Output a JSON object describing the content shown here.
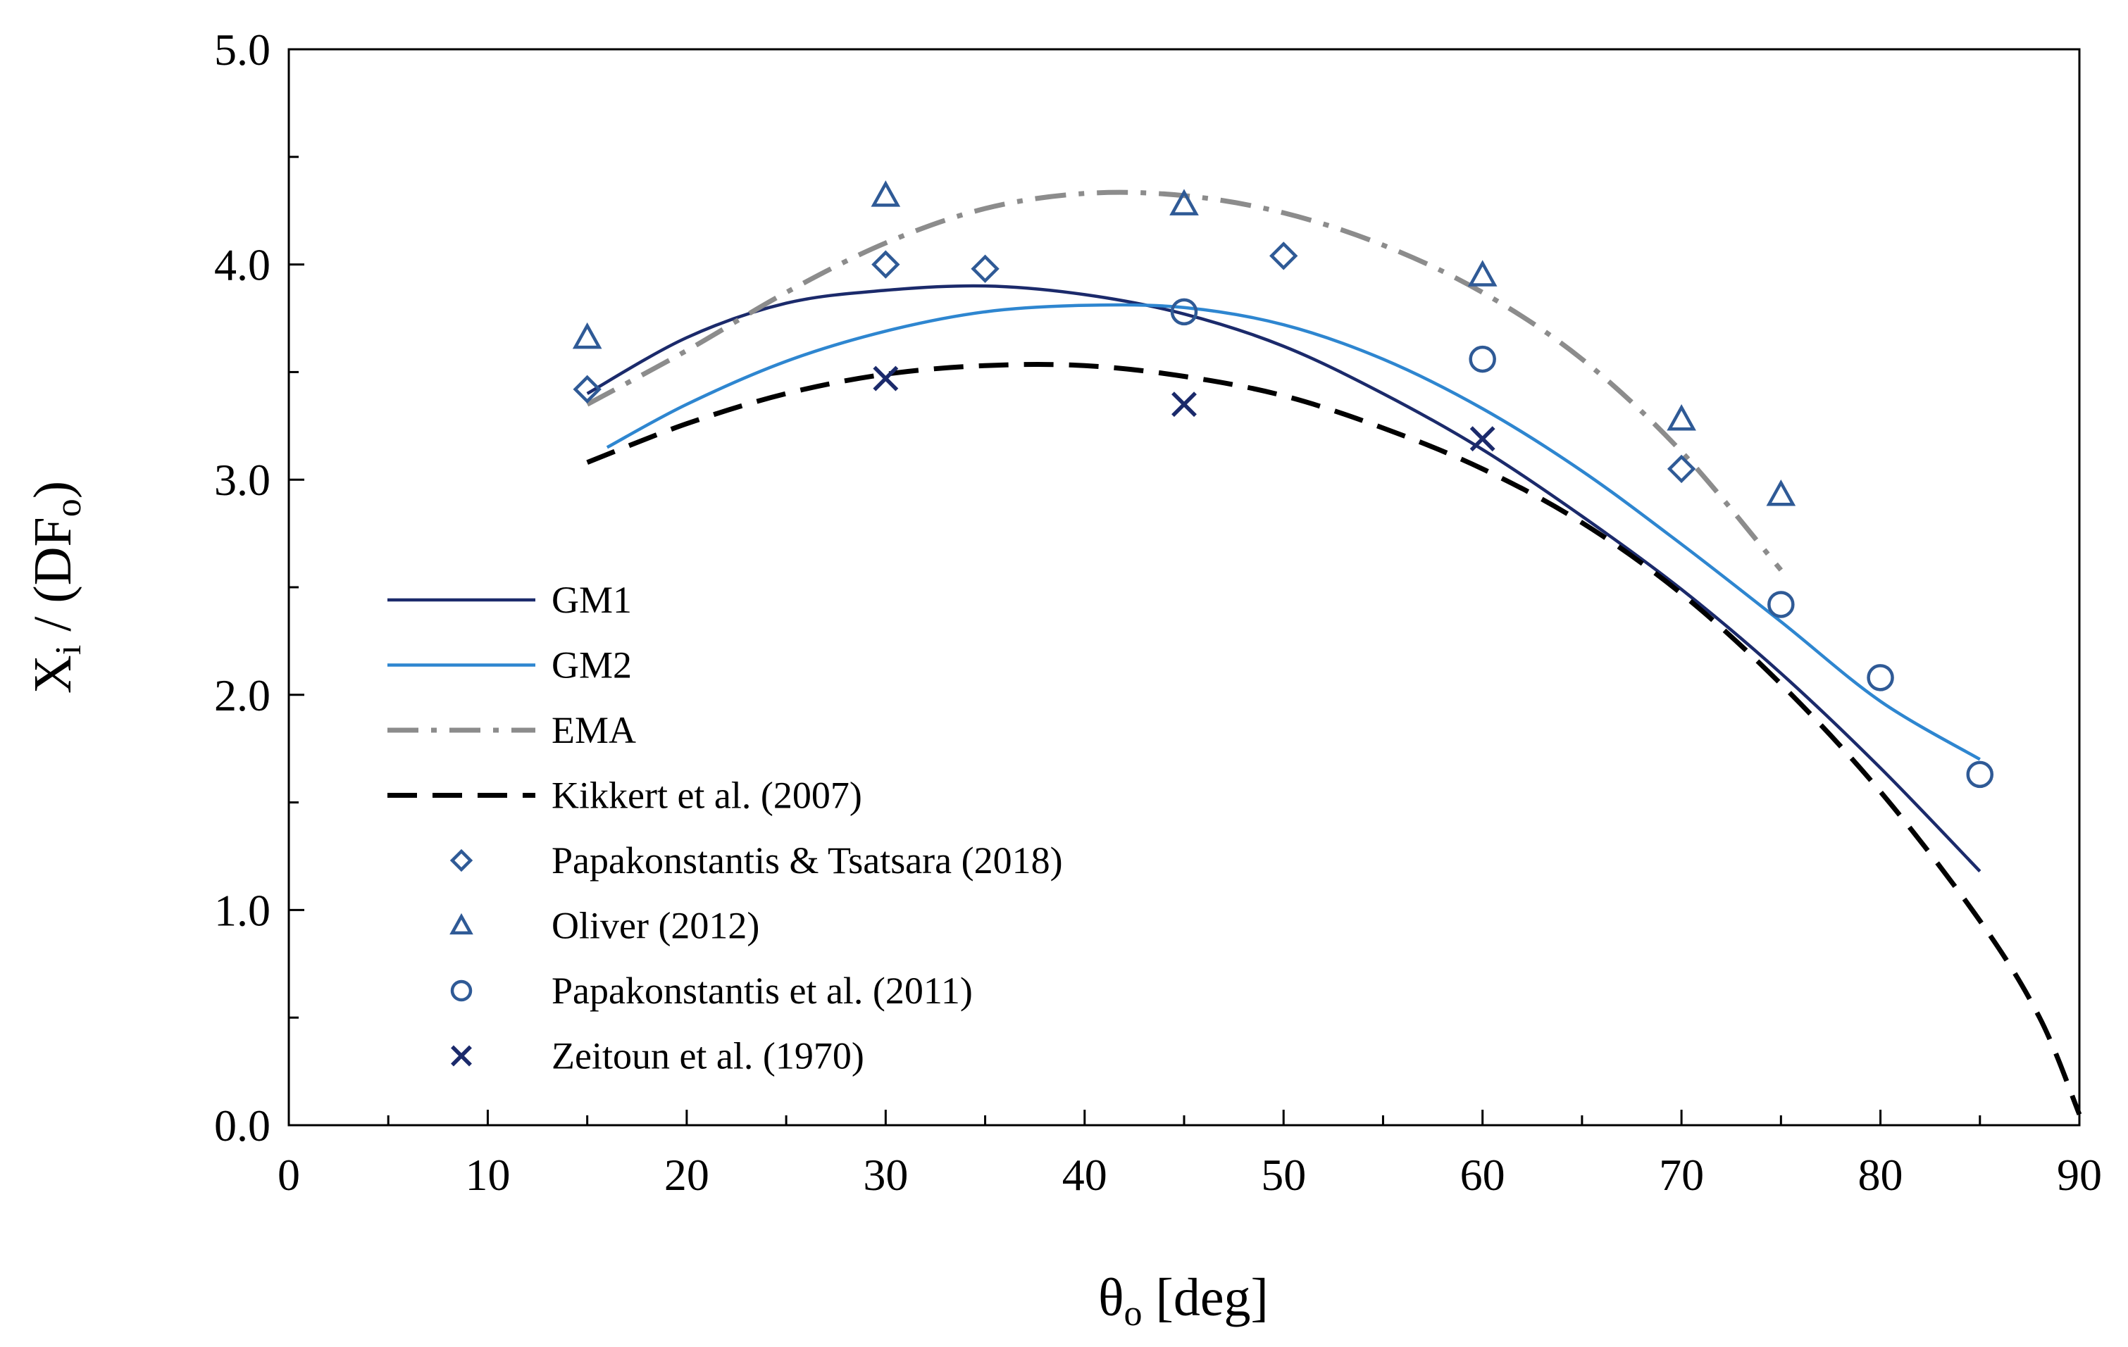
{
  "chart_data": {
    "type": "line",
    "title": "",
    "xlabel": "θ",
    "xlabel_sub": "o",
    "xlabel_unit": " [deg]",
    "ylabel_parts": [
      "X",
      "i",
      " / (DF",
      "o",
      ")"
    ],
    "xlim": [
      0,
      90
    ],
    "ylim": [
      0,
      5
    ],
    "xticks": [
      0,
      10,
      20,
      30,
      40,
      50,
      60,
      70,
      80,
      90
    ],
    "xtick_labels": [
      "0",
      "10",
      "20",
      "30",
      "40",
      "50",
      "60",
      "70",
      "80",
      "90"
    ],
    "yticks": [
      0,
      1,
      2,
      3,
      4,
      5
    ],
    "ytick_labels": [
      "0.0",
      "1.0",
      "2.0",
      "3.0",
      "4.0",
      "5.0"
    ],
    "legend_position": "left",
    "colors": {
      "gm1": "#1b2a6b",
      "gm2": "#2e86d0",
      "ema": "#8c8c8c",
      "kikkert": "#000000",
      "markers": "#2f5a96",
      "zeitoun": "#1b2a6b"
    },
    "series": [
      {
        "key": "gm1",
        "name": "GM1",
        "kind": "line",
        "dash": "solid",
        "x": [
          15,
          20,
          25,
          30,
          35,
          40,
          45,
          50,
          55,
          60,
          65,
          70,
          75,
          80,
          85
        ],
        "y": [
          3.4,
          3.66,
          3.82,
          3.88,
          3.9,
          3.86,
          3.77,
          3.62,
          3.4,
          3.14,
          2.83,
          2.49,
          2.1,
          1.66,
          1.18
        ]
      },
      {
        "key": "gm2",
        "name": "GM2",
        "kind": "line",
        "dash": "solid",
        "x": [
          16,
          20,
          25,
          30,
          35,
          40,
          45,
          50,
          55,
          60,
          65,
          70,
          75,
          80,
          85
        ],
        "y": [
          3.15,
          3.35,
          3.55,
          3.69,
          3.78,
          3.81,
          3.8,
          3.72,
          3.56,
          3.33,
          3.04,
          2.7,
          2.34,
          1.97,
          1.7
        ]
      },
      {
        "key": "ema",
        "name": "EMA",
        "kind": "line",
        "dash": "dashdot",
        "x": [
          15,
          20,
          25,
          30,
          35,
          40,
          45,
          50,
          55,
          60,
          65,
          70,
          75
        ],
        "y": [
          3.35,
          3.6,
          3.87,
          4.1,
          4.26,
          4.33,
          4.32,
          4.24,
          4.09,
          3.87,
          3.56,
          3.13,
          2.58
        ]
      },
      {
        "key": "kikkert",
        "name": "Kikkert et al. (2007)",
        "kind": "line",
        "dash": "dashed",
        "x": [
          15,
          20,
          25,
          30,
          35,
          40,
          45,
          50,
          55,
          60,
          65,
          70,
          75,
          80,
          85,
          88,
          90
        ],
        "y": [
          3.08,
          3.26,
          3.4,
          3.49,
          3.53,
          3.53,
          3.48,
          3.39,
          3.24,
          3.05,
          2.8,
          2.47,
          2.05,
          1.55,
          0.95,
          0.5,
          0.05
        ]
      },
      {
        "key": "papa2018",
        "name": "Papakonstantis & Tsatsara (2018)",
        "kind": "marker",
        "marker": "diamond",
        "x": [
          15,
          30,
          35,
          50,
          70
        ],
        "y": [
          3.42,
          4.0,
          3.98,
          4.04,
          3.05
        ]
      },
      {
        "key": "oliver",
        "name": "Oliver (2012)",
        "kind": "marker",
        "marker": "triangle",
        "x": [
          15,
          30,
          45,
          60,
          70,
          75
        ],
        "y": [
          3.66,
          4.32,
          4.28,
          3.95,
          3.28,
          2.93
        ]
      },
      {
        "key": "papa2011",
        "name": "Papakonstantis et al. (2011)",
        "kind": "marker",
        "marker": "circle",
        "x": [
          45,
          60,
          75,
          80,
          85
        ],
        "y": [
          3.78,
          3.56,
          2.42,
          2.08,
          1.63
        ]
      },
      {
        "key": "zeitoun",
        "name": "Zeitoun et al. (1970)",
        "kind": "marker",
        "marker": "cross",
        "x": [
          30,
          45,
          60
        ],
        "y": [
          3.47,
          3.35,
          3.19
        ]
      }
    ]
  }
}
